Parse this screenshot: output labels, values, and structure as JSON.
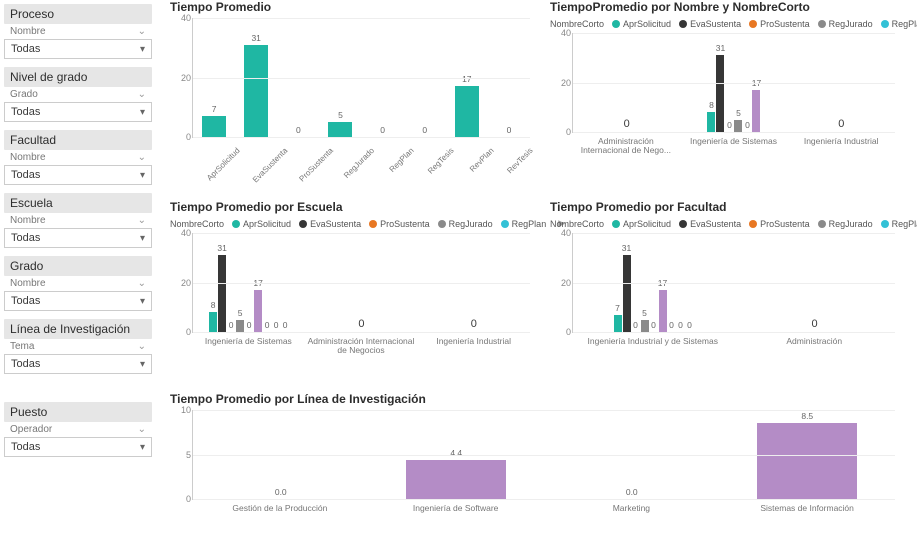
{
  "colors": {
    "teal": "#1fb7a3",
    "dark": "#363636",
    "orange": "#e87722",
    "gray": "#8a8a8a",
    "cyan": "#33c1d6",
    "purple": "#b48cc6",
    "gridline": "#eeeeee",
    "axis": "#cccccc"
  },
  "slicers": [
    {
      "title": "Proceso",
      "sub": "Nombre",
      "value": "Todas"
    },
    {
      "title": "Nivel de grado",
      "sub": "Grado",
      "value": "Todas"
    },
    {
      "title": "Facultad",
      "sub": "Nombre",
      "value": "Todas"
    },
    {
      "title": "Escuela",
      "sub": "Nombre",
      "value": "Todas"
    },
    {
      "title": "Grado",
      "sub": "Nombre",
      "value": "Todas"
    },
    {
      "title": "Línea de Investigación",
      "sub": "Tema",
      "value": "Todas"
    },
    {
      "title": "Puesto",
      "sub": "Operador",
      "value": "Todas"
    }
  ],
  "chart1": {
    "title": "Tiempo Promedio",
    "type": "bar",
    "ylim": [
      0,
      40
    ],
    "ytick_step": 20,
    "bar_color": "#1fb7a3",
    "categories": [
      "AprSolicitud",
      "EvaSustenta",
      "ProSustenta",
      "RegJurado",
      "RegPlan",
      "RegTesis",
      "RevPlan",
      "RevTesis"
    ],
    "values": [
      7,
      31,
      0,
      5,
      0,
      0,
      17,
      0
    ]
  },
  "chart2": {
    "title": "TiempoPromedio por Nombre y NombreCorto",
    "type": "grouped-bar",
    "legend_header": "NombreCorto",
    "series": [
      "AprSolicitud",
      "EvaSustenta",
      "ProSustenta",
      "RegJurado",
      "RegPlan"
    ],
    "series_colors": [
      "#1fb7a3",
      "#363636",
      "#e87722",
      "#8a8a8a",
      "#33c1d6"
    ],
    "ylim": [
      0,
      40
    ],
    "ytick_step": 20,
    "groups": [
      {
        "label": "Administración Internacional de Nego...",
        "values": [
          0,
          0,
          0,
          0,
          0
        ]
      },
      {
        "label": "Ingeniería de Sistemas",
        "values": [
          8,
          31,
          0,
          5,
          0
        ],
        "extra": {
          "purple": 17
        }
      },
      {
        "label": "Ingeniería Industrial",
        "values": [
          0,
          0,
          0,
          0,
          0
        ]
      }
    ]
  },
  "chart3": {
    "title": "Tiempo Promedio por Escuela",
    "type": "grouped-bar",
    "legend_header": "NombreCorto",
    "series": [
      "AprSolicitud",
      "EvaSustenta",
      "ProSustenta",
      "RegJurado",
      "RegPlan"
    ],
    "series_colors": [
      "#1fb7a3",
      "#363636",
      "#e87722",
      "#8a8a8a",
      "#33c1d6"
    ],
    "ylim": [
      0,
      40
    ],
    "ytick_step": 20,
    "groups": [
      {
        "label": "Ingeniería de Sistemas",
        "values": [
          8,
          31,
          0,
          5,
          0
        ],
        "zeros": [
          0,
          0,
          0
        ],
        "extra": {
          "purple": 17
        }
      },
      {
        "label": "Administración Internacional de Negocios",
        "values": [
          0,
          0,
          0,
          0,
          0
        ]
      },
      {
        "label": "Ingeniería Industrial",
        "values": [
          0,
          0,
          0,
          0,
          0
        ]
      }
    ]
  },
  "chart4": {
    "title": "Tiempo Promedio por Facultad",
    "type": "grouped-bar",
    "legend_header": "NombreCorto",
    "series": [
      "AprSolicitud",
      "EvaSustenta",
      "ProSustenta",
      "RegJurado",
      "RegPlan"
    ],
    "series_colors": [
      "#1fb7a3",
      "#363636",
      "#e87722",
      "#8a8a8a",
      "#33c1d6"
    ],
    "ylim": [
      0,
      40
    ],
    "ytick_step": 20,
    "groups": [
      {
        "label": "Ingeniería Industrial y de Sistemas",
        "values": [
          7,
          31,
          0,
          5,
          0
        ],
        "zeros": [
          0,
          0,
          0
        ],
        "extra": {
          "purple": 17
        }
      },
      {
        "label": "Administración",
        "values": [
          0,
          0,
          0,
          0,
          0
        ]
      }
    ]
  },
  "chart5": {
    "title": "Tiempo Promedio por Línea de Investigación",
    "type": "bar",
    "bar_color": "#b48cc6",
    "ylim": [
      0,
      10
    ],
    "ytick_step": 5,
    "categories": [
      "Gestión de la Producción",
      "Ingeniería de Software",
      "Marketing",
      "Sistemas de Información"
    ],
    "values": [
      0.0,
      4.4,
      0.0,
      8.5
    ],
    "value_labels": [
      "0.0",
      "4.4",
      "0.0",
      "8.5"
    ]
  }
}
